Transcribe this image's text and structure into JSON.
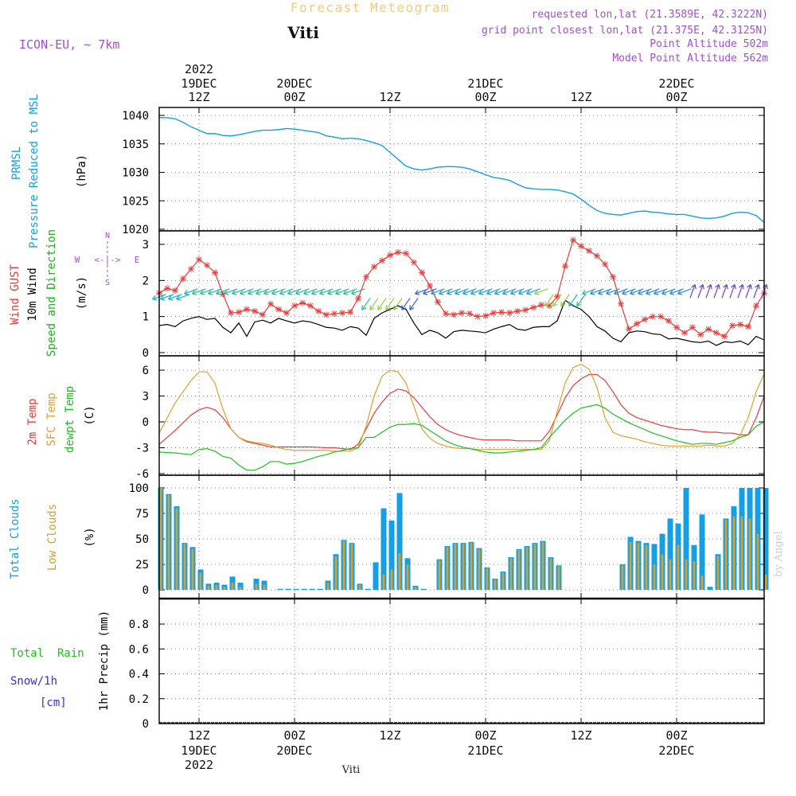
{
  "header": {
    "title": "Forecast Meteogram",
    "location": "Viti",
    "model": "ICON-EU, ~ 7km",
    "requested": "requested lon,lat (21.3589E, 42.3222N)",
    "closest": "grid point closest lon,lat (21.375E, 42.3125N)",
    "point_alt": "Point Altitude 502m",
    "model_alt": "Model Point Altitude 562m",
    "credit": "by Angel",
    "footer_location": "Viti"
  },
  "time_axis": {
    "ticks": [
      {
        "h": 12,
        "label": "12Z",
        "day": "19DEC",
        "year": "2022"
      },
      {
        "h": 24,
        "label": "00Z",
        "day": "20DEC",
        "year": ""
      },
      {
        "h": 36,
        "label": "12Z",
        "day": "",
        "year": ""
      },
      {
        "h": 48,
        "label": "00Z",
        "day": "21DEC",
        "year": ""
      },
      {
        "h": 60,
        "label": "12Z",
        "day": "",
        "year": ""
      },
      {
        "h": 72,
        "label": "00Z",
        "day": "22DEC",
        "year": ""
      }
    ],
    "range_hours": [
      7,
      83
    ]
  },
  "colors": {
    "pressure": "#14a0e6",
    "gust": "#e83c3c",
    "wind": "#000000",
    "dir_label": "#20b020",
    "temp2m": "#e83c3c",
    "sfc": "#e0a030",
    "dewpt": "#20c020",
    "total_cloud": "#14a0e6",
    "low_cloud": "#d4a030",
    "rain": "#20c020",
    "snow": "#3030e0",
    "purple": "#a050d0"
  },
  "labels": {
    "p1": [
      "PRMSL",
      "Pressure Reduced to MSL",
      "(hPa)"
    ],
    "p2": [
      "Wind GUST",
      "10m Wind",
      "Speed and Direction",
      "(m/s)"
    ],
    "p2_compass": {
      "n": "N",
      "s": "S",
      "w": "W",
      "e": "E",
      "arrow": "<-|->"
    },
    "p3": [
      "2m Temp",
      "SFC Temp",
      "dewpt Temp",
      "(C)"
    ],
    "p4": [
      "Total Clouds",
      "Low Clouds",
      "(%)"
    ],
    "p5": [
      "Total  Rain",
      "Snow/1h",
      "[cm]",
      "1hr Precip (mm)"
    ]
  },
  "chart_data": [
    {
      "type": "line",
      "name": "pressure",
      "title": "PRMSL Pressure Reduced to MSL",
      "ylabel": "(hPa)",
      "ylim": [
        1020,
        1041
      ],
      "yticks": [
        1020,
        1025,
        1030,
        1035,
        1040
      ],
      "x": [
        7,
        8,
        9,
        10,
        11,
        12,
        13,
        14,
        15,
        16,
        17,
        18,
        19,
        20,
        21,
        22,
        23,
        24,
        25,
        26,
        27,
        28,
        29,
        30,
        31,
        32,
        33,
        34,
        35,
        36,
        37,
        38,
        39,
        40,
        41,
        42,
        43,
        44,
        45,
        46,
        47,
        48,
        49,
        50,
        51,
        52,
        53,
        54,
        55,
        56,
        57,
        58,
        59,
        60,
        61,
        62,
        63,
        64,
        65,
        66,
        67,
        68,
        69,
        70,
        71,
        72,
        73,
        74,
        75,
        76,
        77,
        78,
        79,
        80,
        81,
        82,
        83
      ],
      "values": [
        1039.6,
        1039.6,
        1039.4,
        1038.8,
        1038.0,
        1037.4,
        1036.8,
        1036.8,
        1036.5,
        1036.4,
        1036.6,
        1036.9,
        1037.2,
        1037.4,
        1037.4,
        1037.5,
        1037.7,
        1037.6,
        1037.4,
        1037.2,
        1037.0,
        1036.4,
        1036.2,
        1035.9,
        1036.0,
        1035.9,
        1035.6,
        1035.2,
        1034.7,
        1033.5,
        1032.3,
        1031.1,
        1030.6,
        1030.4,
        1030.6,
        1030.9,
        1031.0,
        1031.0,
        1030.9,
        1030.6,
        1030.1,
        1029.6,
        1029.1,
        1028.9,
        1028.6,
        1027.9,
        1027.3,
        1027.1,
        1027.0,
        1027.0,
        1026.9,
        1026.6,
        1026.2,
        1025.3,
        1024.2,
        1023.3,
        1022.8,
        1022.6,
        1022.5,
        1022.8,
        1023.1,
        1023.2,
        1023.0,
        1022.9,
        1022.7,
        1022.6,
        1022.6,
        1022.3,
        1022.0,
        1021.9,
        1022.0,
        1022.3,
        1022.8,
        1023.0,
        1022.9,
        1022.4,
        1021.2
      ]
    },
    {
      "type": "line",
      "name": "wind",
      "title": "Wind GUST / 10m Wind Speed and Direction",
      "ylabel": "(m/s)",
      "ylim": [
        0,
        3.3
      ],
      "yticks": [
        0,
        1,
        2,
        3
      ],
      "x": [
        7,
        8,
        9,
        10,
        11,
        12,
        13,
        14,
        15,
        16,
        17,
        18,
        19,
        20,
        21,
        22,
        23,
        24,
        25,
        26,
        27,
        28,
        29,
        30,
        31,
        32,
        33,
        34,
        35,
        36,
        37,
        38,
        39,
        40,
        41,
        42,
        43,
        44,
        45,
        46,
        47,
        48,
        49,
        50,
        51,
        52,
        53,
        54,
        55,
        56,
        57,
        58,
        59,
        60,
        61,
        62,
        63,
        64,
        65,
        66,
        67,
        68,
        69,
        70,
        71,
        72,
        73,
        74,
        75,
        76,
        77,
        78,
        79,
        80,
        81,
        82,
        83
      ],
      "series": [
        {
          "name": "Wind GUST",
          "values": [
            1.65,
            1.78,
            1.72,
            2.05,
            2.32,
            2.58,
            2.42,
            2.22,
            1.62,
            1.1,
            1.12,
            1.2,
            1.15,
            1.05,
            1.35,
            1.2,
            1.1,
            1.3,
            1.38,
            1.3,
            1.15,
            1.05,
            1.08,
            1.1,
            1.12,
            1.5,
            2.1,
            2.38,
            2.55,
            2.7,
            2.78,
            2.75,
            2.5,
            2.22,
            1.85,
            1.4,
            1.08,
            1.05,
            1.1,
            1.08,
            1.0,
            1.02,
            1.1,
            1.12,
            1.1,
            1.15,
            1.18,
            1.25,
            1.32,
            1.3,
            1.55,
            2.4,
            3.12,
            2.95,
            2.82,
            2.68,
            2.45,
            2.1,
            1.35,
            0.65,
            0.8,
            0.92,
            1.0,
            1.0,
            0.88,
            0.7,
            0.55,
            0.7,
            0.5,
            0.65,
            0.55,
            0.45,
            0.75,
            0.78,
            0.72,
            1.3,
            1.65
          ]
        },
        {
          "name": "10m Wind",
          "values": [
            0.75,
            0.78,
            0.72,
            0.88,
            0.95,
            1.0,
            0.92,
            0.95,
            0.7,
            0.55,
            0.82,
            0.45,
            0.85,
            0.9,
            0.82,
            0.95,
            0.88,
            0.82,
            0.88,
            0.85,
            0.78,
            0.7,
            0.68,
            0.62,
            0.72,
            0.68,
            0.48,
            0.95,
            1.1,
            1.2,
            1.3,
            1.2,
            0.82,
            0.5,
            0.62,
            0.55,
            0.4,
            0.58,
            0.62,
            0.6,
            0.58,
            0.55,
            0.65,
            0.72,
            0.78,
            0.65,
            0.62,
            0.7,
            0.72,
            0.72,
            0.88,
            1.45,
            1.3,
            1.2,
            1.0,
            0.72,
            0.6,
            0.4,
            0.3,
            0.55,
            0.6,
            0.58,
            0.52,
            0.5,
            0.38,
            0.4,
            0.35,
            0.3,
            0.28,
            0.32,
            0.2,
            0.3,
            0.28,
            0.32,
            0.22,
            0.45,
            0.35
          ]
        }
      ]
    },
    {
      "type": "line",
      "name": "temperature",
      "title": "2m Temp / SFC Temp / dewpt Temp",
      "ylabel": "(C)",
      "ylim": [
        -6.5,
        7.0
      ],
      "yticks": [
        -6,
        -3,
        0,
        3,
        6
      ],
      "x": [
        7,
        9,
        11,
        12,
        13,
        14,
        15,
        16,
        17,
        18,
        19,
        20,
        21,
        22,
        23,
        24,
        25,
        26,
        27,
        28,
        29,
        30,
        31,
        32,
        33,
        34,
        35,
        36,
        37,
        38,
        39,
        40,
        41,
        42,
        43,
        44,
        45,
        46,
        47,
        48,
        49,
        50,
        51,
        52,
        53,
        54,
        55,
        56,
        57,
        58,
        59,
        60,
        61,
        62,
        63,
        64,
        65,
        66,
        67,
        68,
        69,
        70,
        71,
        72,
        73,
        74,
        75,
        76,
        77,
        78,
        79,
        80,
        81,
        82,
        83
      ],
      "series": [
        {
          "name": "2m Temp",
          "values": [
            -2.6,
            -1.0,
            0.8,
            1.4,
            1.7,
            1.4,
            0.5,
            -0.8,
            -1.8,
            -2.3,
            -2.5,
            -2.7,
            -2.9,
            -2.9,
            -2.9,
            -2.9,
            -2.9,
            -2.9,
            -2.95,
            -3.0,
            -3.0,
            -3.1,
            -3.2,
            -2.6,
            -0.8,
            1.0,
            2.3,
            3.3,
            3.8,
            3.6,
            2.8,
            1.7,
            0.6,
            -0.3,
            -0.9,
            -1.3,
            -1.6,
            -1.8,
            -2.0,
            -2.1,
            -2.1,
            -2.1,
            -2.1,
            -2.2,
            -2.2,
            -2.2,
            -2.2,
            -1.1,
            0.8,
            2.8,
            4.2,
            5.0,
            5.5,
            5.5,
            4.8,
            3.5,
            2.0,
            1.0,
            0.5,
            0.2,
            -0.1,
            -0.4,
            -0.6,
            -0.8,
            -0.9,
            -0.9,
            -1.1,
            -1.2,
            -1.2,
            -1.3,
            -1.3,
            -1.5,
            -1.5,
            0.5,
            3.0
          ]
        },
        {
          "name": "SFC Temp",
          "values": [
            -1.3,
            2.2,
            4.8,
            5.8,
            5.8,
            4.5,
            1.5,
            -0.8,
            -1.8,
            -2.2,
            -2.4,
            -2.5,
            -2.7,
            -3.0,
            -3.2,
            -3.3,
            -3.3,
            -3.3,
            -3.3,
            -3.3,
            -3.4,
            -3.4,
            -3.4,
            -3.0,
            -0.5,
            3.0,
            5.3,
            6.0,
            5.8,
            4.5,
            1.8,
            -0.8,
            -1.9,
            -2.5,
            -2.8,
            -3.0,
            -3.1,
            -3.1,
            -3.2,
            -3.2,
            -3.2,
            -3.2,
            -3.2,
            -3.2,
            -3.2,
            -3.2,
            -3.2,
            -2.2,
            1.2,
            4.5,
            6.3,
            6.7,
            6.1,
            4.0,
            0.5,
            -1.2,
            -1.6,
            -1.8,
            -2.0,
            -2.3,
            -2.5,
            -2.7,
            -2.8,
            -2.8,
            -2.8,
            -2.8,
            -2.8,
            -2.7,
            -2.8,
            -2.8,
            -2.5,
            -1.5,
            0.5,
            3.5,
            5.6
          ]
        },
        {
          "name": "dewpt Temp",
          "values": [
            -3.5,
            -3.6,
            -3.8,
            -3.2,
            -3.1,
            -3.4,
            -4.0,
            -4.2,
            -5.0,
            -5.6,
            -5.6,
            -5.2,
            -4.6,
            -4.6,
            -4.9,
            -4.8,
            -4.6,
            -4.3,
            -4.0,
            -3.8,
            -3.5,
            -3.3,
            -3.1,
            -3.0,
            -1.8,
            -1.8,
            -1.2,
            -0.6,
            -0.3,
            -0.3,
            -0.2,
            -0.4,
            -1.0,
            -1.6,
            -2.2,
            -2.6,
            -2.9,
            -3.1,
            -3.3,
            -3.5,
            -3.6,
            -3.6,
            -3.5,
            -3.4,
            -3.3,
            -3.2,
            -3.0,
            -1.8,
            -0.8,
            0.2,
            1.0,
            1.6,
            1.8,
            2.0,
            1.6,
            0.9,
            0.4,
            -0.1,
            -0.5,
            -0.9,
            -1.3,
            -1.6,
            -1.9,
            -2.2,
            -2.4,
            -2.6,
            -2.5,
            -2.5,
            -2.6,
            -2.4,
            -2.2,
            -1.8,
            -1.5,
            -0.5,
            0.0
          ]
        }
      ]
    },
    {
      "type": "bar",
      "name": "clouds",
      "title": "Total Clouds / Low Clouds",
      "ylabel": "(%)",
      "ylim": [
        -2,
        102
      ],
      "yticks": [
        0,
        25,
        50,
        75,
        100
      ],
      "x": [
        7,
        8,
        9,
        10,
        11,
        12,
        13,
        14,
        15,
        16,
        17,
        18,
        19,
        20,
        21,
        22,
        23,
        24,
        25,
        26,
        27,
        28,
        29,
        30,
        31,
        32,
        33,
        34,
        35,
        36,
        37,
        38,
        39,
        40,
        41,
        42,
        43,
        44,
        45,
        46,
        47,
        48,
        49,
        50,
        51,
        52,
        53,
        54,
        55,
        56,
        57,
        58,
        59,
        60,
        61,
        62,
        63,
        64,
        65,
        66,
        67,
        68,
        69,
        70,
        71,
        72,
        73,
        74,
        75,
        76,
        77,
        78,
        79,
        80,
        81,
        82,
        83
      ],
      "series": [
        {
          "name": "Total Clouds",
          "values": [
            100,
            94,
            82,
            46,
            42,
            20,
            6,
            7,
            5,
            13,
            7,
            0,
            11,
            9,
            0,
            1,
            1,
            1,
            1,
            1,
            1,
            9,
            35,
            49,
            46,
            6,
            1,
            27,
            80,
            68,
            95,
            31,
            4,
            1,
            0,
            30,
            43,
            46,
            46,
            47,
            41,
            22,
            11,
            18,
            32,
            40,
            43,
            46,
            48,
            32,
            24,
            0,
            0,
            0,
            0,
            0,
            0,
            0,
            25,
            52,
            48,
            46,
            45,
            55,
            70,
            65,
            100,
            44,
            74,
            3,
            35,
            70,
            82,
            100,
            100,
            100,
            100
          ]
        },
        {
          "name": "Low Clouds",
          "values": [
            100,
            93,
            80,
            45,
            40,
            17,
            4,
            5,
            3,
            7,
            3,
            0,
            6,
            5,
            0,
            0,
            0,
            0,
            0,
            0,
            0,
            7,
            33,
            48,
            45,
            5,
            0,
            0,
            15,
            20,
            36,
            25,
            3,
            0,
            0,
            29,
            42,
            45,
            45,
            46,
            40,
            21,
            10,
            17,
            31,
            39,
            42,
            45,
            47,
            31,
            23,
            0,
            0,
            0,
            0,
            0,
            0,
            0,
            24,
            47,
            46,
            44,
            25,
            35,
            30,
            44,
            30,
            28,
            14,
            0,
            33,
            69,
            72,
            72,
            70,
            55,
            15
          ]
        }
      ]
    },
    {
      "type": "bar",
      "name": "precip",
      "title": "Total Rain / Snow/1h",
      "ylabel": "1hr Precip (mm)",
      "ylim": [
        0,
        1.0
      ],
      "yticks": [
        0,
        0.2,
        0.4,
        0.6,
        0.8
      ],
      "series": [
        {
          "name": "Total Rain",
          "values": []
        },
        {
          "name": "Snow/1h",
          "values": []
        }
      ]
    }
  ]
}
